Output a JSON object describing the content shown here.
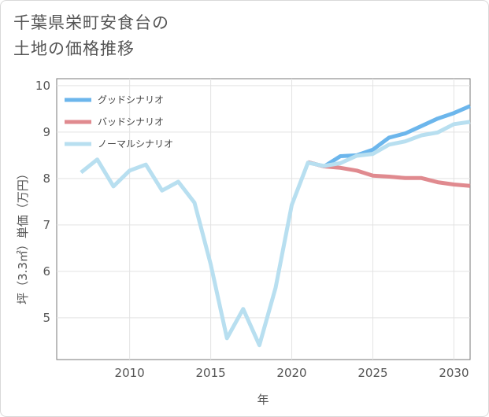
{
  "page": {
    "title_line1": "千葉県栄町安食台の",
    "title_line2": "土地の価格推移"
  },
  "chart_data": {
    "type": "line",
    "title": "千葉県栄町安食台の土地の価格推移",
    "xlabel": "年",
    "ylabel": "坪（3.3㎡）単価（万円）",
    "xlim": [
      2005.5,
      2031
    ],
    "ylim": [
      4.1,
      10.15
    ],
    "xticks": [
      2010,
      2015,
      2020,
      2025,
      2030
    ],
    "yticks": [
      5,
      6,
      7,
      8,
      9,
      10
    ],
    "grid": true,
    "legend_position": "top-left",
    "series": [
      {
        "name": "グッドシナリオ",
        "color": "#6cb6ec",
        "x": [
          2021,
          2022,
          2023,
          2024,
          2025,
          2026,
          2027,
          2028,
          2029,
          2030,
          2031
        ],
        "values": [
          8.35,
          8.26,
          8.48,
          8.5,
          8.62,
          8.88,
          8.97,
          9.13,
          9.29,
          9.41,
          9.56
        ]
      },
      {
        "name": "バッドシナリオ",
        "color": "#e08a8f",
        "x": [
          2021,
          2022,
          2023,
          2024,
          2025,
          2026,
          2027,
          2028,
          2029,
          2030,
          2031
        ],
        "values": [
          8.35,
          8.26,
          8.23,
          8.17,
          8.06,
          8.04,
          8.01,
          8.01,
          7.92,
          7.87,
          7.84
        ]
      },
      {
        "name": "ノーマルシナリオ",
        "color": "#b8dff0",
        "x": [
          2007,
          2008,
          2009,
          2010,
          2011,
          2012,
          2013,
          2014,
          2015,
          2016,
          2017,
          2018,
          2019,
          2020,
          2021,
          2022,
          2023,
          2024,
          2025,
          2026,
          2027,
          2028,
          2029,
          2030,
          2031
        ],
        "values": [
          8.13,
          8.41,
          7.83,
          8.17,
          8.3,
          7.74,
          7.93,
          7.48,
          6.15,
          4.56,
          5.19,
          4.41,
          5.64,
          7.43,
          8.34,
          8.27,
          8.33,
          8.49,
          8.53,
          8.73,
          8.8,
          8.93,
          8.99,
          9.17,
          9.22
        ]
      }
    ]
  }
}
